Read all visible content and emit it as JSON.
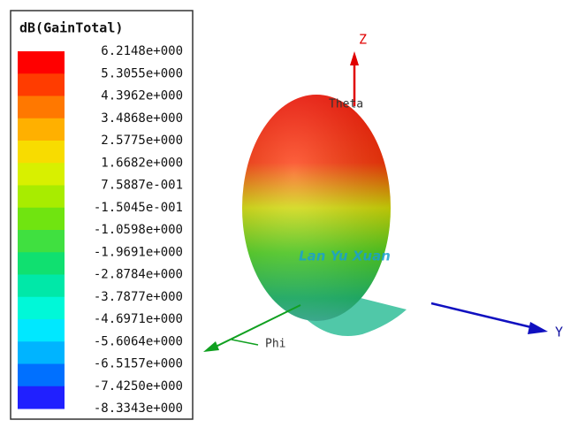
{
  "legend": {
    "title": "dB(GainTotal)",
    "entries": [
      {
        "label": "6.2148e+000",
        "color": "#ff0000"
      },
      {
        "label": "5.3055e+000",
        "color": "#ff3c00"
      },
      {
        "label": "4.3962e+000",
        "color": "#ff7800"
      },
      {
        "label": "3.4868e+000",
        "color": "#ffb000"
      },
      {
        "label": "2.5775e+000",
        "color": "#f8dc00"
      },
      {
        "label": "1.6682e+000",
        "color": "#d8f000"
      },
      {
        "label": "7.5887e-001",
        "color": "#a8ec00"
      },
      {
        "label": "-1.5045e-001",
        "color": "#70e410"
      },
      {
        "label": "-1.0598e+000",
        "color": "#40e040"
      },
      {
        "label": "-1.9691e+000",
        "color": "#10e070"
      },
      {
        "label": "-2.8784e+000",
        "color": "#00e8a8"
      },
      {
        "label": "-3.7877e+000",
        "color": "#00f8d8"
      },
      {
        "label": "-4.6971e+000",
        "color": "#00e8ff"
      },
      {
        "label": "-5.6064e+000",
        "color": "#00b4ff"
      },
      {
        "label": "-6.5157e+000",
        "color": "#0070ff"
      },
      {
        "label": "-7.4250e+000",
        "color": "#2020ff"
      },
      {
        "label": "-8.3343e+000",
        "color": "#0000f0"
      }
    ]
  },
  "axes": {
    "z": "Z",
    "y": "Y",
    "phi": "Phi",
    "theta": "Theta"
  },
  "watermark": "Lan Yu Xuan"
}
